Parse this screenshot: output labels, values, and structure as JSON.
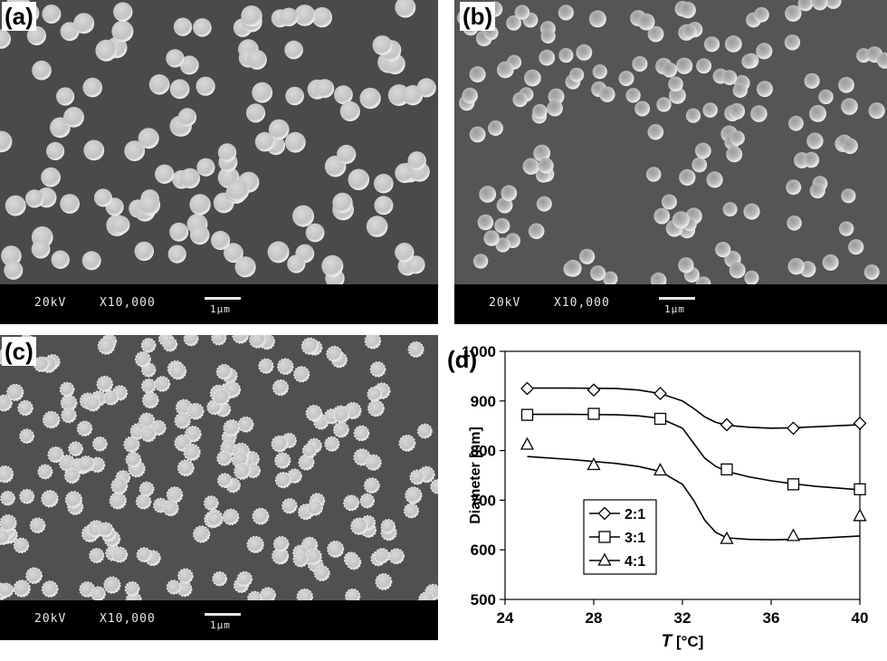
{
  "panels": [
    {
      "label": "(a)",
      "voltage": "20kV",
      "magnification": "X10,000",
      "scale": "1μm"
    },
    {
      "label": "(b)",
      "voltage": "20kV",
      "magnification": "X10,000",
      "scale": "1μm"
    },
    {
      "label": "(c)",
      "voltage": "20kV",
      "magnification": "X10,000",
      "scale": "1μm"
    }
  ],
  "plot_label": "(d)",
  "chart_data": {
    "type": "line",
    "xlabel_italic": "T",
    "xlabel_unit": " [°C]",
    "ylabel": "Diameter [nm]",
    "xlim": [
      24,
      40
    ],
    "ylim": [
      500,
      1000
    ],
    "xticks": [
      24,
      28,
      32,
      36,
      40
    ],
    "yticks": [
      500,
      600,
      700,
      800,
      900,
      1000
    ],
    "legend_position": "lower-left",
    "series": [
      {
        "name": "2:1",
        "marker": "diamond",
        "x": [
          25,
          28,
          31,
          34,
          37,
          40
        ],
        "y": [
          925,
          922,
          915,
          852,
          845,
          855
        ]
      },
      {
        "name": "3:1",
        "marker": "square",
        "x": [
          25,
          28,
          31,
          34,
          37,
          40
        ],
        "y": [
          872,
          874,
          864,
          762,
          732,
          722
        ]
      },
      {
        "name": "4:1",
        "marker": "triangle",
        "x": [
          25,
          28,
          31,
          34,
          37,
          40
        ],
        "y": [
          812,
          771,
          760,
          622,
          628,
          668
        ]
      }
    ],
    "fits": [
      {
        "x": [
          25,
          27,
          29,
          30,
          31,
          32,
          32.5,
          33,
          33.5,
          34,
          35,
          36,
          37,
          38,
          40
        ],
        "y": [
          926,
          926,
          925,
          922,
          915,
          900,
          885,
          868,
          857,
          851,
          847,
          845,
          846,
          848,
          852
        ]
      },
      {
        "x": [
          25,
          27,
          29,
          30,
          31,
          32,
          32.5,
          33,
          33.5,
          34,
          35,
          36,
          37,
          38,
          40
        ],
        "y": [
          873,
          873,
          872,
          870,
          865,
          845,
          815,
          785,
          768,
          758,
          747,
          739,
          733,
          728,
          721
        ]
      },
      {
        "x": [
          25,
          27,
          29,
          30,
          31,
          32,
          32.5,
          33,
          33.5,
          34,
          35,
          36,
          37,
          38,
          40
        ],
        "y": [
          788,
          782,
          774,
          768,
          758,
          732,
          700,
          660,
          635,
          624,
          621,
          620,
          621,
          623,
          628
        ]
      }
    ]
  }
}
